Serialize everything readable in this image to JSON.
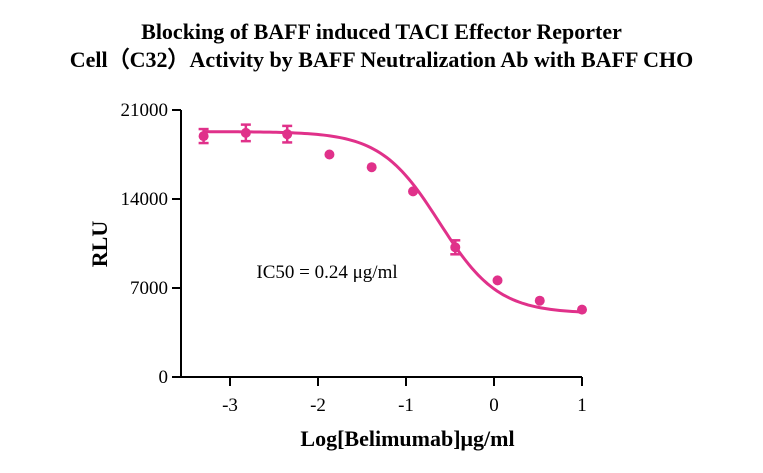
{
  "chart_data": {
    "type": "scatter",
    "title_line1": "Blocking of BAFF induced TACI Effector Reporter",
    "title_line2": "Cell（C32）Activity by BAFF Neutralization Ab with BAFF CHO",
    "xlabel": "Log[Belimumab]μg/ml",
    "ylabel": "RLU",
    "xlim": [
      -3.5,
      1
    ],
    "ylim": [
      0,
      21000
    ],
    "x_ticks": [
      -3,
      -2,
      -1,
      0,
      1
    ],
    "x_tick_labels": [
      "-3",
      "-2",
      "-1",
      "0",
      "1"
    ],
    "y_ticks": [
      0,
      7000,
      14000,
      21000
    ],
    "y_tick_labels": [
      "0",
      "7000",
      "14000",
      "21000"
    ],
    "color": "#e0318a",
    "points": [
      {
        "x": -3.3,
        "y": 18950,
        "err": 550
      },
      {
        "x": -2.82,
        "y": 19200,
        "err": 650
      },
      {
        "x": -2.35,
        "y": 19100,
        "err": 650
      },
      {
        "x": -1.87,
        "y": 17500,
        "err": 0
      },
      {
        "x": -1.39,
        "y": 16500,
        "err": 0
      },
      {
        "x": -0.92,
        "y": 14600,
        "err": 0
      },
      {
        "x": -0.44,
        "y": 10200,
        "err": 550
      },
      {
        "x": 0.04,
        "y": 7600,
        "err": 0
      },
      {
        "x": 0.52,
        "y": 6000,
        "err": 0
      },
      {
        "x": 1.0,
        "y": 5300,
        "err": 0
      }
    ],
    "fit": {
      "model": "4PL",
      "bottom": 5000,
      "top": 19300,
      "log_ic50": -0.62,
      "hill": 1.3
    },
    "annotation": "IC50 = 0.24 μg/ml",
    "annotation_pos": {
      "x": -2.7,
      "y": 7800
    }
  }
}
